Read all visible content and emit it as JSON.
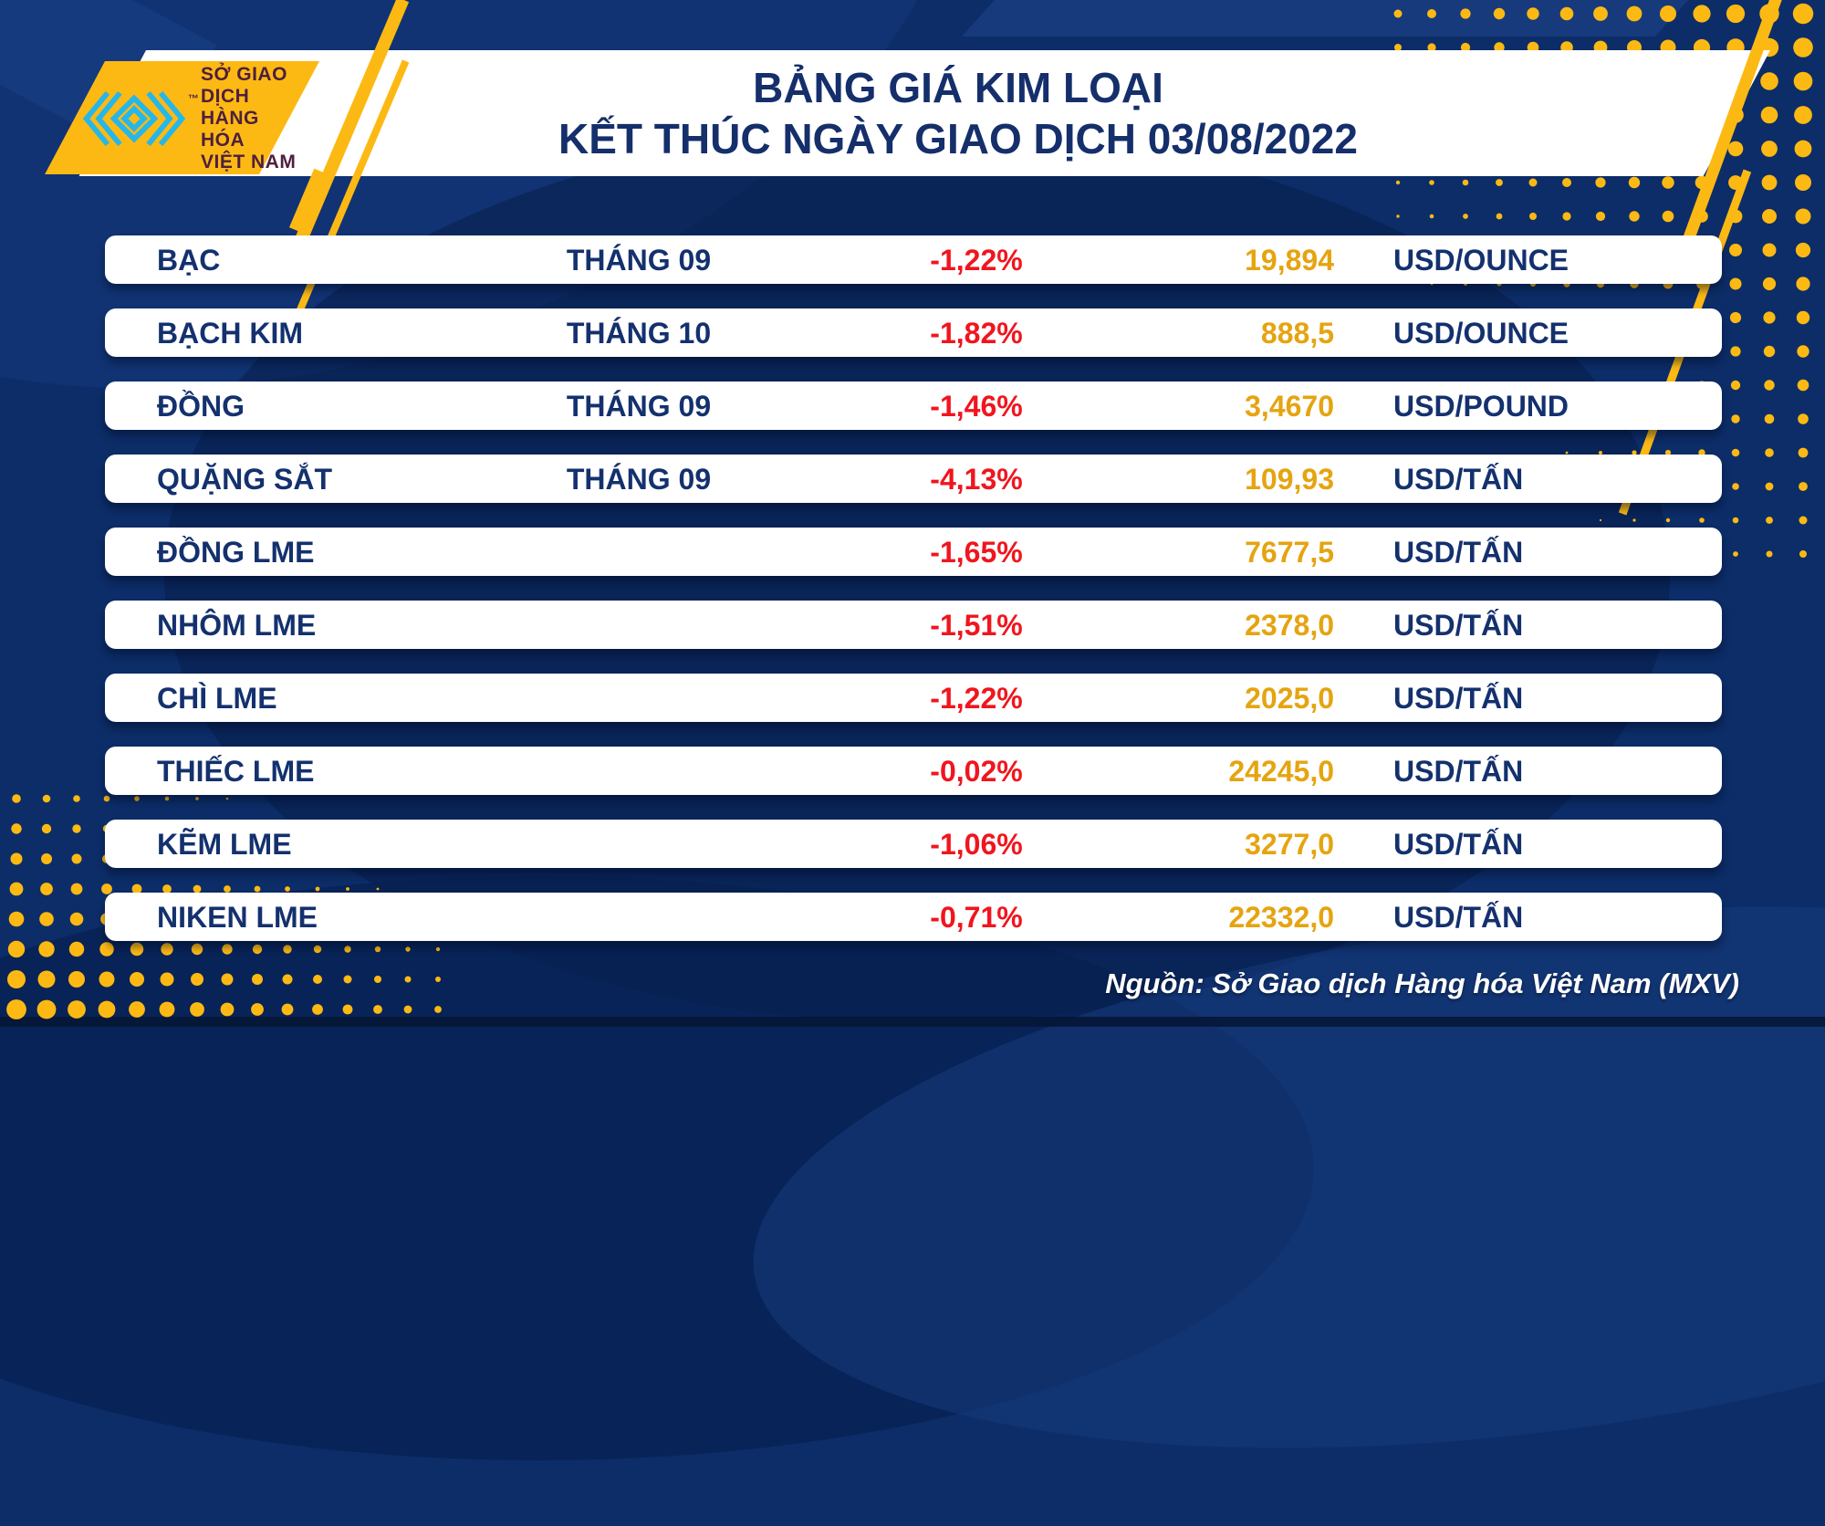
{
  "header": {
    "title_line1": "BẢNG GIÁ KIM LOẠI",
    "title_line2": "KẾT THÚC NGÀY GIAO DỊCH 03/08/2022",
    "logo": {
      "trademark": "™",
      "org_line1": "SỞ GIAO DỊCH",
      "org_line2": "HÀNG HÓA",
      "org_line3": "VIỆT NAM"
    }
  },
  "chart_data": {
    "type": "table",
    "title": "BẢNG GIÁ KIM LOẠI",
    "subtitle": "KẾT THÚC NGÀY GIAO DỊCH 03/08/2022",
    "rows": [
      {
        "name": "BẠC",
        "month": "THÁNG 09",
        "change": "-1,22%",
        "price": "19,894",
        "unit": "USD/OUNCE"
      },
      {
        "name": "BẠCH KIM",
        "month": "THÁNG 10",
        "change": "-1,82%",
        "price": "888,5",
        "unit": "USD/OUNCE"
      },
      {
        "name": "ĐỒNG",
        "month": "THÁNG 09",
        "change": "-1,46%",
        "price": "3,4670",
        "unit": "USD/POUND"
      },
      {
        "name": "QUẶNG SẮT",
        "month": "THÁNG 09",
        "change": "-4,13%",
        "price": "109,93",
        "unit": "USD/TẤN"
      },
      {
        "name": "ĐỒNG LME",
        "month": "",
        "change": "-1,65%",
        "price": "7677,5",
        "unit": "USD/TẤN"
      },
      {
        "name": "NHÔM LME",
        "month": "",
        "change": "-1,51%",
        "price": "2378,0",
        "unit": "USD/TẤN"
      },
      {
        "name": "CHÌ LME",
        "month": "",
        "change": "-1,22%",
        "price": "2025,0",
        "unit": "USD/TẤN"
      },
      {
        "name": "THIẾC LME",
        "month": "",
        "change": "-0,02%",
        "price": "24245,0",
        "unit": "USD/TẤN"
      },
      {
        "name": "KẼM LME",
        "month": "",
        "change": "-1,06%",
        "price": "3277,0",
        "unit": "USD/TẤN"
      },
      {
        "name": "NIKEN LME",
        "month": "",
        "change": "-0,71%",
        "price": "22332,0",
        "unit": "USD/TẤN"
      }
    ]
  },
  "footer": {
    "source": "Nguồn: Sở Giao dịch Hàng hóa Việt Nam (MXV)"
  },
  "colors": {
    "background_navy": "#0C2D68",
    "accent_yellow": "#FDB913",
    "logo_cyan": "#25B7EA",
    "navy_text": "#14316E",
    "negative_red": "#F0151E",
    "price_gold": "#E5A410"
  }
}
